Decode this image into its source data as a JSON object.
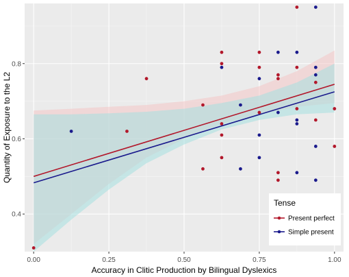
{
  "chart_data": {
    "type": "scatter",
    "xlabel": "Accuracy in Clitic Production by Bilingual Dyslexics",
    "ylabel": "Quantity of Exposure to the L2",
    "xlim": [
      -0.03,
      1.03
    ],
    "ylim": [
      0.3,
      0.96
    ],
    "x_ticks": [
      0.0,
      0.25,
      0.5,
      0.75,
      1.0
    ],
    "x_tick_labels": [
      "0.00",
      "0.25",
      "0.50",
      "0.75",
      "1.00"
    ],
    "y_ticks": [
      0.4,
      0.6,
      0.8
    ],
    "y_tick_labels": [
      "0.4",
      "0.6",
      "0.8"
    ],
    "grid": true,
    "legend": {
      "title": "Tense",
      "position": "bottom-right"
    },
    "series": [
      {
        "name": "Present perfect",
        "color": "#B2182B",
        "points": [
          [
            0.0,
            0.31
          ],
          [
            0.31,
            0.62
          ],
          [
            0.375,
            0.76
          ],
          [
            0.5625,
            0.69
          ],
          [
            0.5625,
            0.52
          ],
          [
            0.625,
            0.83
          ],
          [
            0.625,
            0.8
          ],
          [
            0.625,
            0.64
          ],
          [
            0.625,
            0.61
          ],
          [
            0.625,
            0.55
          ],
          [
            0.75,
            0.83
          ],
          [
            0.75,
            0.79
          ],
          [
            0.75,
            0.67
          ],
          [
            0.8125,
            0.77
          ],
          [
            0.8125,
            0.76
          ],
          [
            0.8125,
            0.51
          ],
          [
            0.8125,
            0.49
          ],
          [
            0.875,
            0.95
          ],
          [
            0.875,
            0.79
          ],
          [
            0.875,
            0.68
          ],
          [
            0.9375,
            0.75
          ],
          [
            0.9375,
            0.65
          ],
          [
            1.0,
            0.68
          ],
          [
            1.0,
            0.58
          ]
        ],
        "fit": {
          "x": [
            0.0,
            1.0
          ],
          "y": [
            0.5,
            0.745
          ]
        },
        "band": {
          "x": [
            0.0,
            0.125,
            0.25,
            0.375,
            0.5,
            0.625,
            0.75,
            0.875,
            1.0
          ],
          "upper": [
            0.675,
            0.68,
            0.685,
            0.69,
            0.7,
            0.715,
            0.74,
            0.78,
            0.835
          ],
          "lower": [
            0.32,
            0.4,
            0.48,
            0.55,
            0.6,
            0.64,
            0.665,
            0.685,
            0.695
          ]
        }
      },
      {
        "name": "Simple present",
        "color": "#1A1A8C",
        "points": [
          [
            0.125,
            0.62
          ],
          [
            0.625,
            0.79
          ],
          [
            0.6875,
            0.69
          ],
          [
            0.6875,
            0.52
          ],
          [
            0.75,
            0.76
          ],
          [
            0.75,
            0.61
          ],
          [
            0.75,
            0.55
          ],
          [
            0.8125,
            0.83
          ],
          [
            0.8125,
            0.67
          ],
          [
            0.875,
            0.83
          ],
          [
            0.875,
            0.65
          ],
          [
            0.875,
            0.64
          ],
          [
            0.875,
            0.51
          ],
          [
            0.9375,
            0.95
          ],
          [
            0.9375,
            0.79
          ],
          [
            0.9375,
            0.77
          ],
          [
            0.9375,
            0.58
          ],
          [
            0.9375,
            0.49
          ]
        ],
        "fit": {
          "x": [
            0.0,
            1.0
          ],
          "y": [
            0.483,
            0.725
          ]
        },
        "band": {
          "x": [
            0.0,
            0.125,
            0.25,
            0.375,
            0.5,
            0.625,
            0.75,
            0.875,
            1.0
          ],
          "upper": [
            0.665,
            0.665,
            0.668,
            0.672,
            0.68,
            0.695,
            0.715,
            0.75,
            0.8
          ],
          "lower": [
            0.3,
            0.385,
            0.465,
            0.535,
            0.585,
            0.625,
            0.65,
            0.665,
            0.67
          ]
        }
      }
    ],
    "band_colors": [
      "#F4C7C7",
      "#A6E0E0"
    ]
  }
}
